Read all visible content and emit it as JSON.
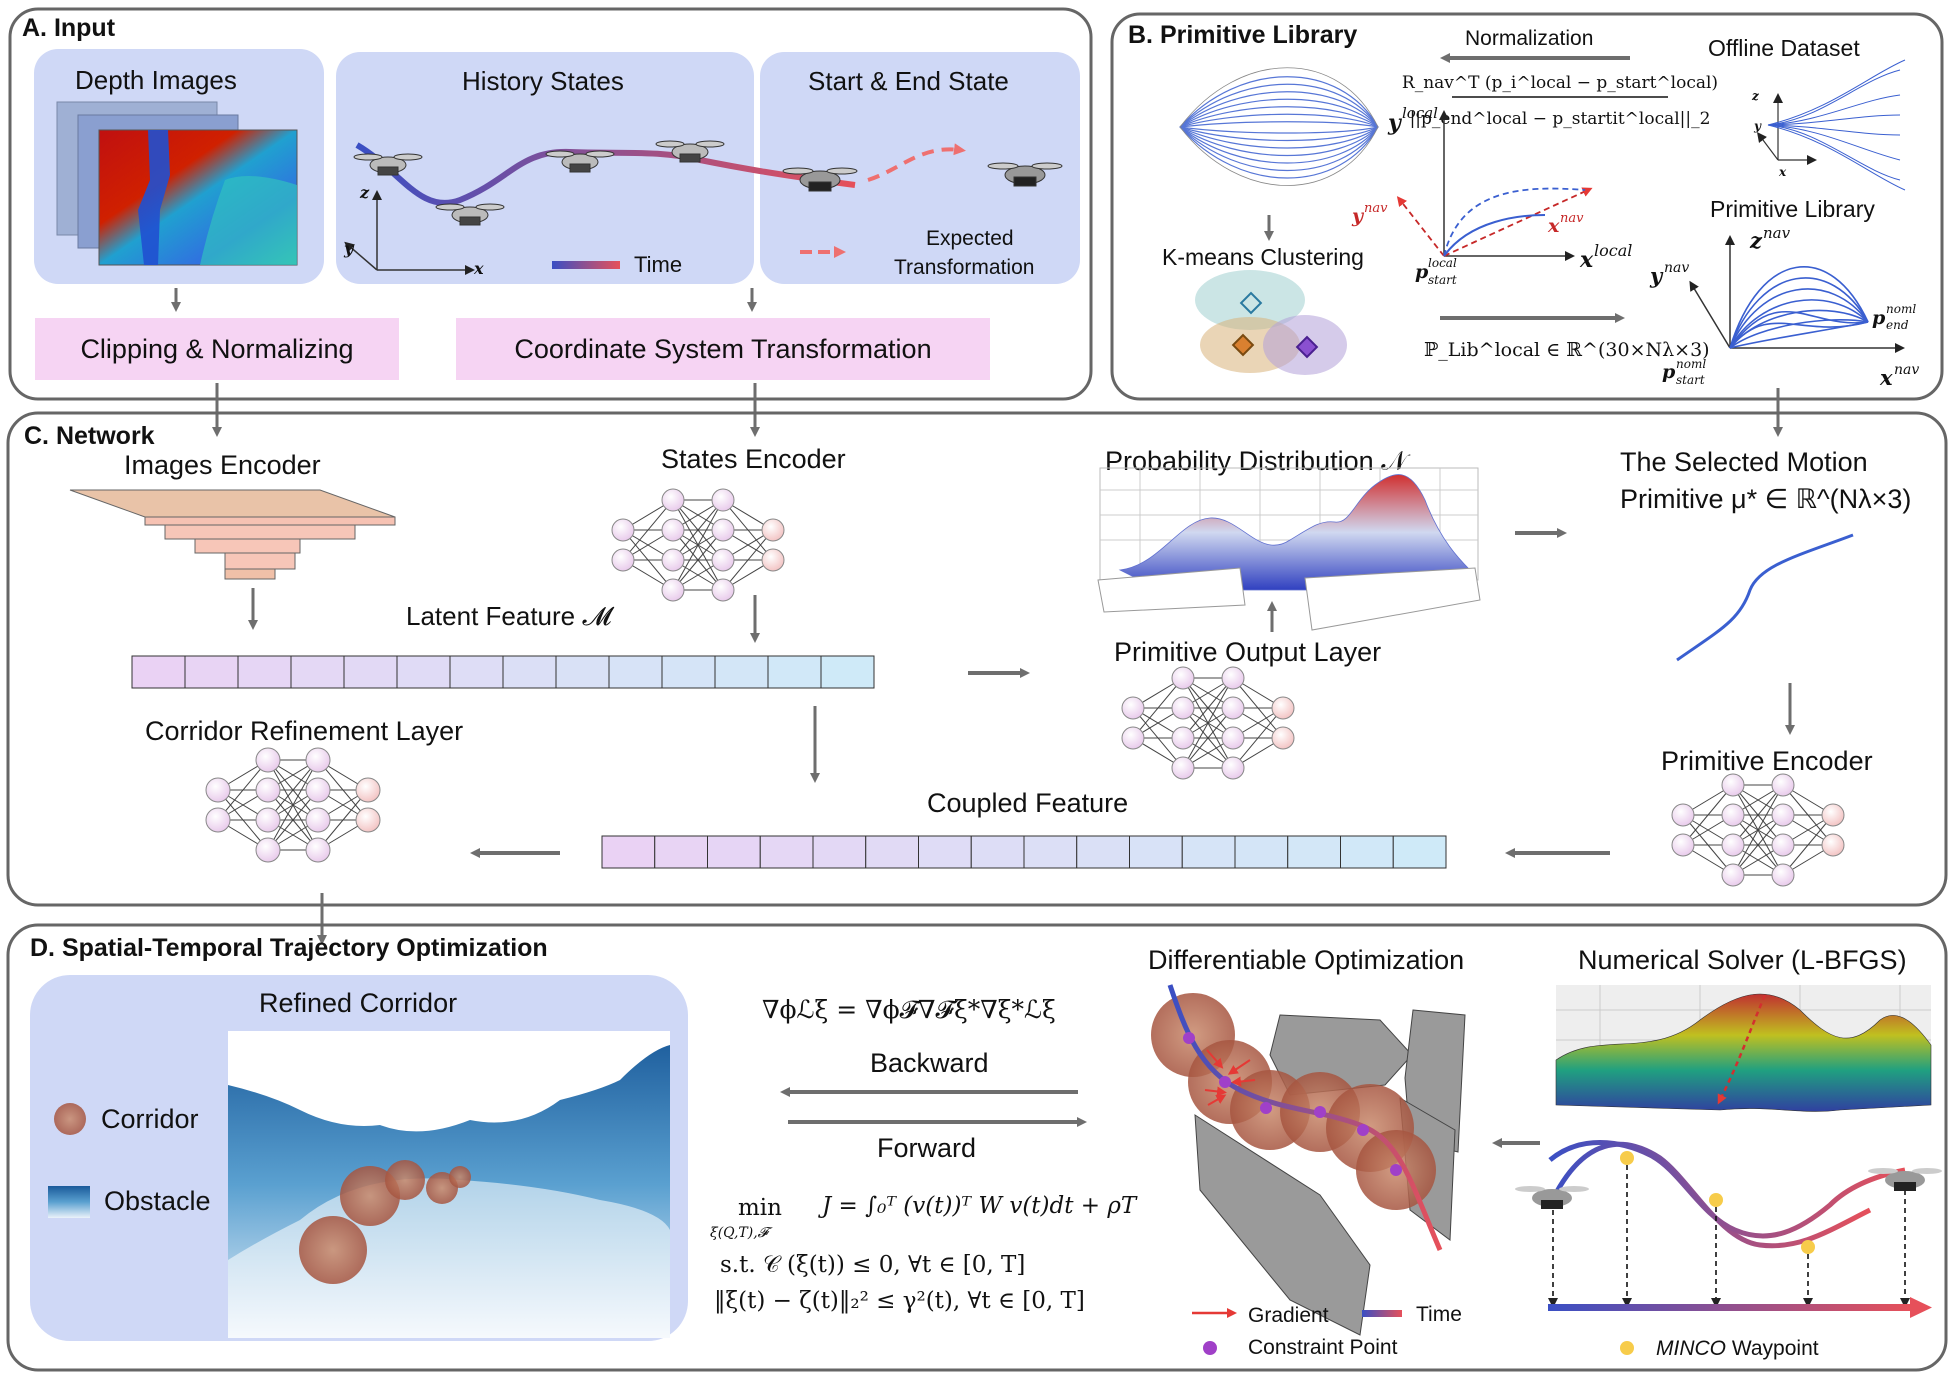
{
  "sections": {
    "input": "A. Input",
    "library": "B. Primitive Library",
    "network": "C. Network",
    "optimization": "D. Spatial-Temporal Trajectory Optimization"
  },
  "input": {
    "depth_images": "Depth Images",
    "history_states": "History States",
    "start_end": "Start & End State",
    "time": "Time",
    "expected_line1": "Expected",
    "expected_line2": "Transformation",
    "clipping": "Clipping & Normalizing",
    "coord_transform": "Coordinate System Transformation",
    "axis_x": "x",
    "axis_y": "y",
    "axis_z": "z"
  },
  "library": {
    "normalization": "Normalization",
    "formula_num": "R_nav^T (p_i^local − p_start^local)",
    "formula_den": "||p_end^local − p_startit^local||_2",
    "kmeans": "K-means Clustering",
    "offline_dataset": "Offline Dataset",
    "primitive_library": "Primitive Library",
    "y_local": "y",
    "y_local_sup": "local",
    "x_local": "x",
    "x_local_sup": "local",
    "y_nav": "y",
    "y_nav_sup": "nav",
    "x_nav": "x",
    "x_nav_sup": "nav",
    "p_start_local": "p",
    "p_start_local_sup": "local",
    "p_start_local_sub": "start",
    "lib_formula": "ℙ_Lib^local ∈ ℝ^(30×Nλ×3)",
    "z_nav": "z",
    "z_nav_sup": "nav",
    "y_nav2": "y",
    "y_nav2_sup": "nav",
    "x_nav2": "x",
    "x_nav2_sup": "nav",
    "p_end_noml": "p",
    "p_end_noml_sup": "noml",
    "p_end_noml_sub": "end",
    "p_start_noml": "p",
    "p_start_noml_sup": "noml",
    "p_start_noml_sub": "start"
  },
  "network": {
    "images_encoder": "Images Encoder",
    "states_encoder": "States Encoder",
    "latent_feature": "Latent Feature 𝓜",
    "prob_dist": "Probability Distribution 𝒩",
    "primitive_output": "Primitive Output Layer",
    "selected_line1": "The Selected Motion",
    "selected_line2": "Primitive  μ* ∈ ℝ^(Nλ×3)",
    "primitive_encoder": "Primitive Encoder",
    "coupled_feature": "Coupled Feature",
    "corridor_refinement": "Corridor Refinement Layer"
  },
  "optimization": {
    "refined_corridor": "Refined Corridor",
    "corridor": "Corridor",
    "obstacle": "Obstacle",
    "grad_formula": "∇ϕℒξ = ∇ϕ𝓕∇𝓕ξ*∇ξ*ℒξ",
    "backward": "Backward",
    "forward": "Forward",
    "obj_min": "min",
    "obj_min_sub": "ξ(Q,T),𝓕",
    "obj_main": "J = ∫₀ᵀ (v(t))ᵀ W v(t)dt + ρT",
    "constraint1": "s.t. 𝒞 (ξ(t)) ≤ 0, ∀t ∈ [0, T]",
    "constraint2": "‖ξ(t) − ζ(t)‖₂² ≤ γ²(t), ∀t ∈ [0, T]",
    "diff_opt": "Differentiable Optimization",
    "gradient": "Gradient",
    "time": "Time",
    "constraint_point": "Constraint Point",
    "solver": "Numerical Solver (L-BFGS)",
    "minco_italic": "MINCO",
    "minco_rest": " Waypoint"
  },
  "colors": {
    "panel_blue": "#cfd8f6",
    "pink_box": "#f6d4f3",
    "arrow_gray": "#6e6e6e",
    "traj_blue": "#3a5fd0",
    "traj_red": "#d8394a",
    "corridor_brown": "#b5654a",
    "obstacle_gray": "#9a9a9a",
    "constraint_purple": "#a040c8",
    "waypoint_yellow": "#f7cc4a"
  }
}
